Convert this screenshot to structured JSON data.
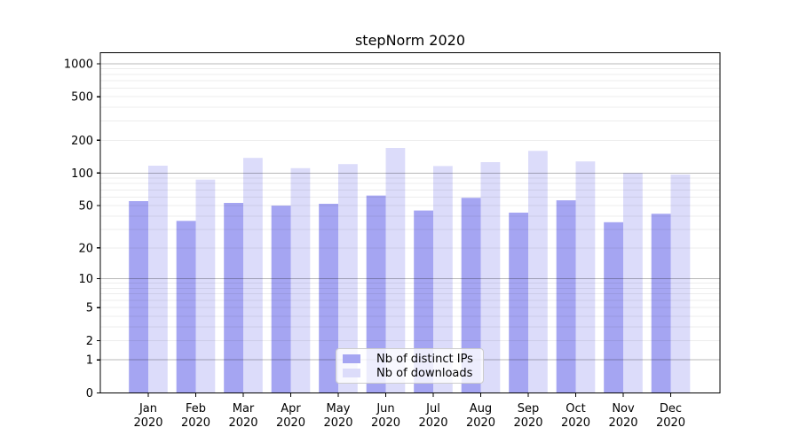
{
  "chart_data": {
    "type": "bar",
    "title": "stepNorm 2020",
    "xlabel": "",
    "ylabel": "",
    "scale": "log10(1+y)",
    "ylim": [
      0,
      1300
    ],
    "grid": "on",
    "legend_position": "lower center",
    "categories": [
      "Jan",
      "Feb",
      "Mar",
      "Apr",
      "May",
      "Jun",
      "Jul",
      "Aug",
      "Sep",
      "Oct",
      "Nov",
      "Dec"
    ],
    "category_year": "2020",
    "series": [
      {
        "name": "Nb of distinct IPs",
        "color": "#a5a5f2",
        "values": [
          55,
          36,
          53,
          50,
          52,
          62,
          45,
          59,
          43,
          56,
          35,
          42
        ]
      },
      {
        "name": "Nb of downloads",
        "color": "#dcdcfa",
        "values": [
          117,
          87,
          138,
          111,
          121,
          170,
          116,
          126,
          160,
          128,
          100,
          97
        ]
      }
    ],
    "y_ticks": [
      0,
      1,
      2,
      5,
      10,
      20,
      50,
      100,
      200,
      500,
      1000
    ],
    "grid_major": [
      1,
      10,
      100,
      1000
    ],
    "grid_minor": [
      2,
      3,
      4,
      5,
      6,
      7,
      8,
      9,
      20,
      30,
      40,
      50,
      60,
      70,
      80,
      90,
      200,
      300,
      400,
      500,
      600,
      700,
      800,
      900
    ],
    "colors": {
      "frame": "#000000",
      "major_grid": "rgba(0,0,0,0.28)",
      "minor_grid": "rgba(0,0,0,0.07)",
      "text": "#000000"
    }
  }
}
